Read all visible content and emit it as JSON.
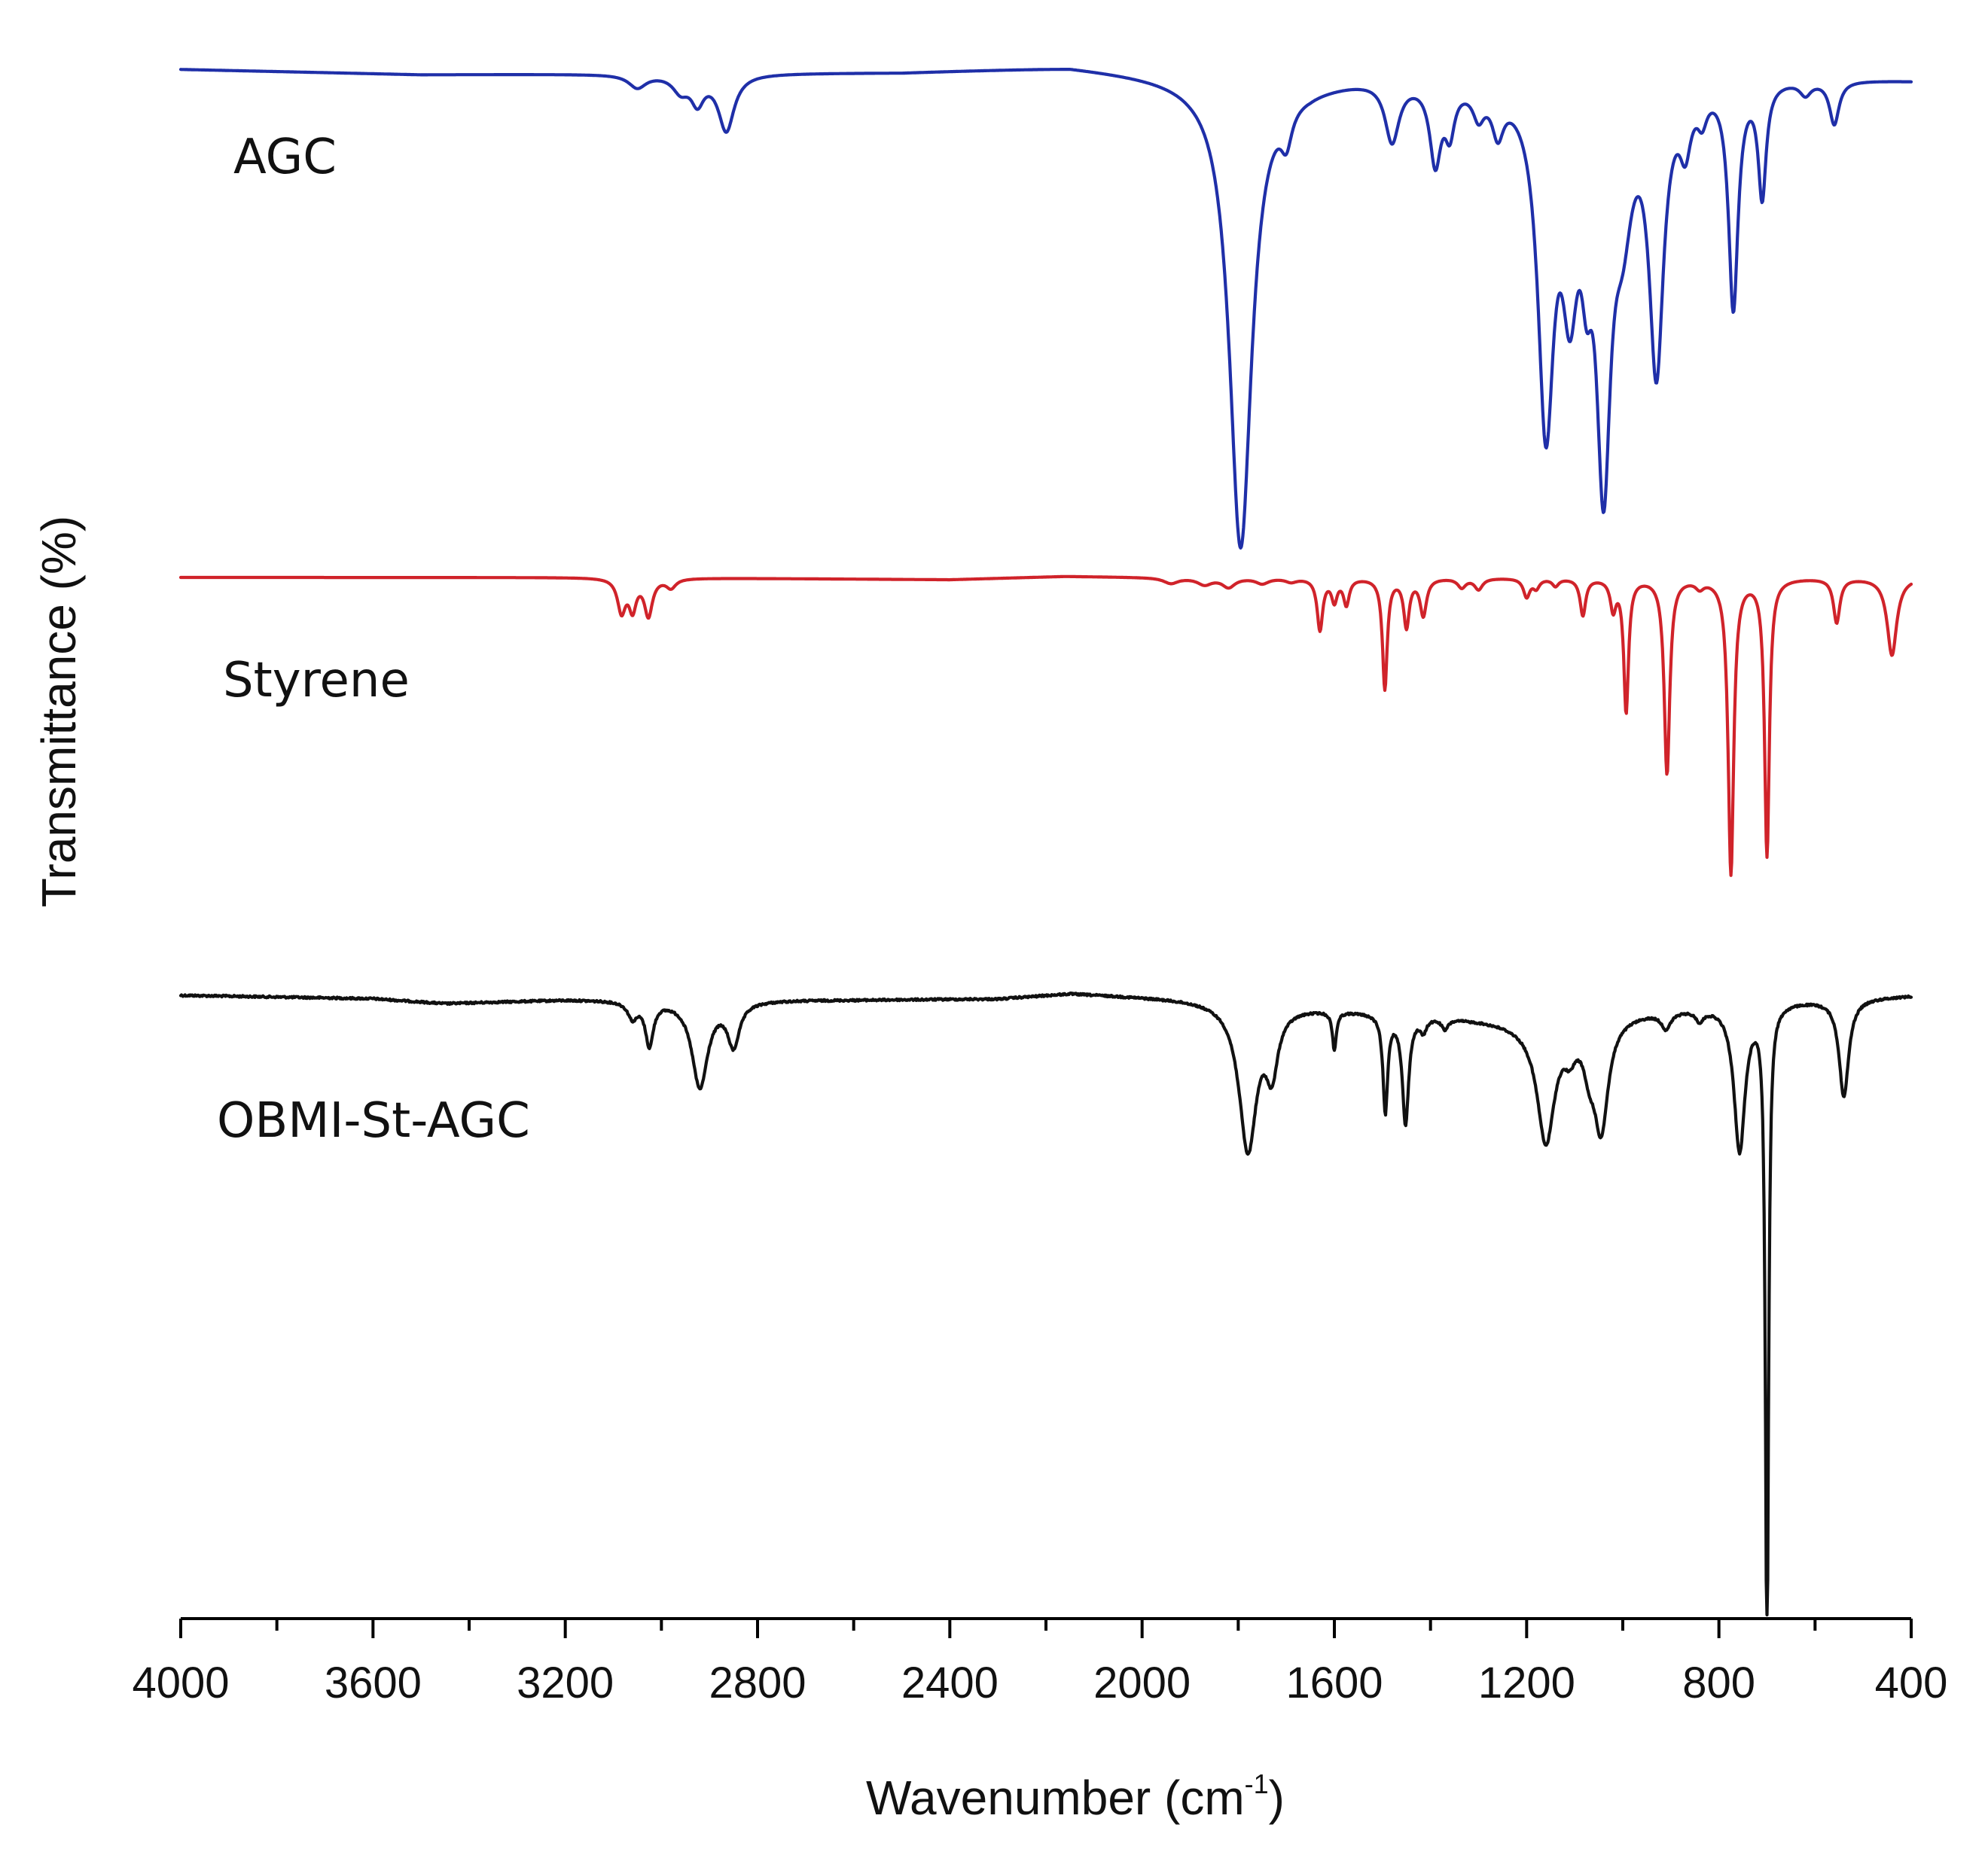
{
  "chart_data": {
    "type": "line",
    "title": "",
    "xlabel": "Wavenumber (cm",
    "xlabel_superscript": "-1",
    "xlabel_suffix": ")",
    "ylabel": "Transmittance (%)",
    "xlim": [
      4000,
      400
    ],
    "x_reversed": true,
    "y_ticks_shown": false,
    "x_major_ticks": [
      4000,
      3600,
      3200,
      2800,
      2400,
      2000,
      1600,
      1200,
      800,
      400
    ],
    "x_tick_labels": [
      "4000",
      "3600",
      "3200",
      "2800",
      "2400",
      "2000",
      "1600",
      "1200",
      "800",
      "400"
    ],
    "x_minor_ticks": [
      3800,
      3400,
      3000,
      2600,
      2200,
      1800,
      1400,
      1000,
      600
    ],
    "series": [
      {
        "name": "AGC",
        "color": "#1f2fa8",
        "baseline": 0,
        "noise": 0.0,
        "offset_pct": 0,
        "baseline_shape": [
          [
            4000,
            0.0
          ],
          [
            3500,
            0.6
          ],
          [
            3100,
            0.5
          ],
          [
            2500,
            0.3
          ],
          [
            2150,
            -0.4
          ],
          [
            1900,
            0.8
          ],
          [
            1650,
            1.4
          ],
          [
            1500,
            0.5
          ],
          [
            1250,
            1.0
          ],
          [
            800,
            0.5
          ],
          [
            400,
            1.2
          ]
        ],
        "bands": [
          [
            3050,
            22,
            1.5
          ],
          [
            2960,
            20,
            1.8
          ],
          [
            2925,
            16,
            3.0
          ],
          [
            2865,
            20,
            6.5
          ],
          [
            1795,
            28,
            54.0
          ],
          [
            1700,
            14,
            4.0
          ],
          [
            1480,
            18,
            7.0
          ],
          [
            1390,
            14,
            9.0
          ],
          [
            1360,
            12,
            5.0
          ],
          [
            1300,
            14,
            3.0
          ],
          [
            1260,
            14,
            4.5
          ],
          [
            1160,
            20,
            38.0
          ],
          [
            1110,
            20,
            20.0
          ],
          [
            1075,
            14,
            12.0
          ],
          [
            1040,
            18,
            42.0
          ],
          [
            1000,
            24,
            12.0
          ],
          [
            930,
            18,
            32.0
          ],
          [
            870,
            14,
            6.0
          ],
          [
            835,
            12,
            3.0
          ],
          [
            770,
            12,
            26.0
          ],
          [
            710,
            10,
            13.0
          ],
          [
            620,
            14,
            1.5
          ],
          [
            560,
            12,
            5.0
          ]
        ]
      },
      {
        "name": "Styrene",
        "color": "#d0232a",
        "baseline": 0,
        "noise": 0.0,
        "offset_pct": 0,
        "baseline_shape": [
          [
            4000,
            0.0
          ],
          [
            3100,
            0.0
          ],
          [
            2400,
            0.6
          ],
          [
            2160,
            -0.3
          ],
          [
            1950,
            0.0
          ],
          [
            400,
            0.0
          ]
        ],
        "bands": [
          [
            3083,
            10,
            9.0
          ],
          [
            3060,
            9,
            8.0
          ],
          [
            3027,
            10,
            10.0
          ],
          [
            2980,
            12,
            2.5
          ],
          [
            1940,
            18,
            1.5
          ],
          [
            1870,
            18,
            1.8
          ],
          [
            1820,
            16,
            2.5
          ],
          [
            1750,
            16,
            1.5
          ],
          [
            1690,
            14,
            1.0
          ],
          [
            1630,
            7,
            14.0
          ],
          [
            1600,
            7,
            6.0
          ],
          [
            1575,
            7,
            7.0
          ],
          [
            1495,
            6,
            30.0
          ],
          [
            1450,
            7,
            13.0
          ],
          [
            1415,
            8,
            10.0
          ],
          [
            1335,
            10,
            2.5
          ],
          [
            1300,
            10,
            3.0
          ],
          [
            1200,
            8,
            5.0
          ],
          [
            1180,
            8,
            2.5
          ],
          [
            1140,
            8,
            2.0
          ],
          [
            1083,
            7,
            10.0
          ],
          [
            1020,
            7,
            8.0
          ],
          [
            993,
            6,
            36.0
          ],
          [
            908,
            7,
            53.0
          ],
          [
            840,
            10,
            2.0
          ],
          [
            775,
            7,
            80.0
          ],
          [
            700,
            6,
            75.0
          ],
          [
            555,
            8,
            12.0
          ],
          [
            440,
            12,
            21.0
          ]
        ]
      },
      {
        "name": "OBMI-St-AGC",
        "color": "#111111",
        "baseline": 0,
        "noise": 0.35,
        "offset_pct": 0,
        "baseline_shape": [
          [
            4000,
            0.0
          ],
          [
            3600,
            0.6
          ],
          [
            3450,
            1.5
          ],
          [
            3200,
            0.8
          ],
          [
            2600,
            0.8
          ],
          [
            2300,
            0.6
          ],
          [
            2150,
            -0.4
          ],
          [
            1900,
            0.6
          ],
          [
            1750,
            1.5
          ],
          [
            1400,
            3.5
          ],
          [
            1200,
            5.0
          ],
          [
            800,
            1.5
          ],
          [
            700,
            1.0
          ],
          [
            400,
            0.0
          ]
        ],
        "bands": [
          [
            3060,
            12,
            3.0
          ],
          [
            3025,
            10,
            8.0
          ],
          [
            2920,
            20,
            16.0
          ],
          [
            2850,
            15,
            8.0
          ],
          [
            1780,
            22,
            27.0
          ],
          [
            1730,
            15,
            11.0
          ],
          [
            1600,
            5,
            7.0
          ],
          [
            1494,
            6,
            18.0
          ],
          [
            1452,
            8,
            20.0
          ],
          [
            1415,
            8,
            2.5
          ],
          [
            1370,
            8,
            2.0
          ],
          [
            1160,
            22,
            22.0
          ],
          [
            1110,
            14,
            4.0
          ],
          [
            1070,
            14,
            6.0
          ],
          [
            1045,
            18,
            20.0
          ],
          [
            910,
            12,
            3.0
          ],
          [
            840,
            10,
            2.0
          ],
          [
            757,
            14,
            27.0
          ],
          [
            700,
            4,
            120.0
          ],
          [
            540,
            12,
            18.0
          ]
        ]
      }
    ]
  }
}
